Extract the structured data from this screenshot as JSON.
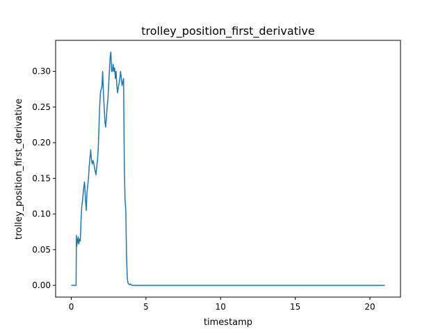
{
  "chart_data": {
    "type": "line",
    "title": "trolley_position_first_derivative",
    "xlabel": "timestamp",
    "ylabel": "trolley_position_first_derivative",
    "xlim": [
      -1.05,
      22.05
    ],
    "ylim": [
      -0.0165,
      0.3435
    ],
    "xticks": [
      0,
      5,
      10,
      15,
      20
    ],
    "xtick_labels": [
      "0",
      "5",
      "10",
      "15",
      "20"
    ],
    "yticks": [
      0.0,
      0.05,
      0.1,
      0.15,
      0.2,
      0.25,
      0.3
    ],
    "ytick_labels": [
      "0.00",
      "0.05",
      "0.10",
      "0.15",
      "0.20",
      "0.25",
      "0.30"
    ],
    "grid": false,
    "series": [
      {
        "name": "trolley_position_first_derivative",
        "color": "#1f77b4",
        "x": [
          0.0,
          0.3,
          0.32,
          0.34,
          0.37,
          0.4,
          0.43,
          0.46,
          0.5,
          0.55,
          0.6,
          0.65,
          0.7,
          0.75,
          0.8,
          0.85,
          0.88,
          0.9,
          0.95,
          1.0,
          1.05,
          1.1,
          1.15,
          1.18,
          1.2,
          1.22,
          1.25,
          1.28,
          1.3,
          1.33,
          1.36,
          1.4,
          1.45,
          1.5,
          1.55,
          1.6,
          1.65,
          1.7,
          1.75,
          1.8,
          1.85,
          1.9,
          1.95,
          2.0,
          2.05,
          2.1,
          2.15,
          2.2,
          2.25,
          2.3,
          2.35,
          2.4,
          2.45,
          2.5,
          2.55,
          2.6,
          2.65,
          2.7,
          2.75,
          2.8,
          2.85,
          2.9,
          2.95,
          3.0,
          3.05,
          3.1,
          3.15,
          3.2,
          3.25,
          3.3,
          3.35,
          3.4,
          3.45,
          3.5,
          3.55,
          3.6,
          3.65,
          3.7,
          3.75,
          3.8,
          3.85,
          3.9,
          3.95,
          4.0,
          4.05,
          4.1,
          4.15,
          4.2,
          4.25,
          4.3,
          4.32,
          4.35,
          4.4,
          4.45,
          4.5,
          4.6,
          4.7,
          4.8,
          4.9,
          5.0,
          5.05,
          5.1,
          5.2,
          5.5,
          21.0
        ],
        "y": [
          0.0,
          0.0,
          0.0,
          0.07,
          0.055,
          0.065,
          0.06,
          0.068,
          0.058,
          0.065,
          0.062,
          0.09,
          0.11,
          0.118,
          0.13,
          0.14,
          0.145,
          0.14,
          0.12,
          0.105,
          0.13,
          0.14,
          0.15,
          0.16,
          0.168,
          0.17,
          0.18,
          0.185,
          0.19,
          0.18,
          0.175,
          0.17,
          0.175,
          0.172,
          0.165,
          0.16,
          0.155,
          0.165,
          0.175,
          0.19,
          0.22,
          0.25,
          0.27,
          0.275,
          0.278,
          0.3,
          0.27,
          0.25,
          0.23,
          0.222,
          0.235,
          0.25,
          0.26,
          0.28,
          0.3,
          0.32,
          0.327,
          0.3,
          0.3,
          0.31,
          0.3,
          0.305,
          0.29,
          0.3,
          0.28,
          0.27,
          0.278,
          0.283,
          0.29,
          0.3,
          0.29,
          0.28,
          0.285,
          0.29,
          0.17,
          0.12,
          0.105,
          0.04,
          0.01,
          0.003,
          0.002,
          0.001,
          0.002,
          0.001,
          0.0,
          0.0,
          0.0,
          0.0,
          0.0,
          0.0,
          0.0,
          0.0,
          0.0,
          0.0,
          0.0,
          0.0,
          0.0,
          0.0,
          0.0,
          0.0,
          0.0,
          0.0,
          0.0,
          0.0,
          0.0
        ]
      }
    ]
  }
}
